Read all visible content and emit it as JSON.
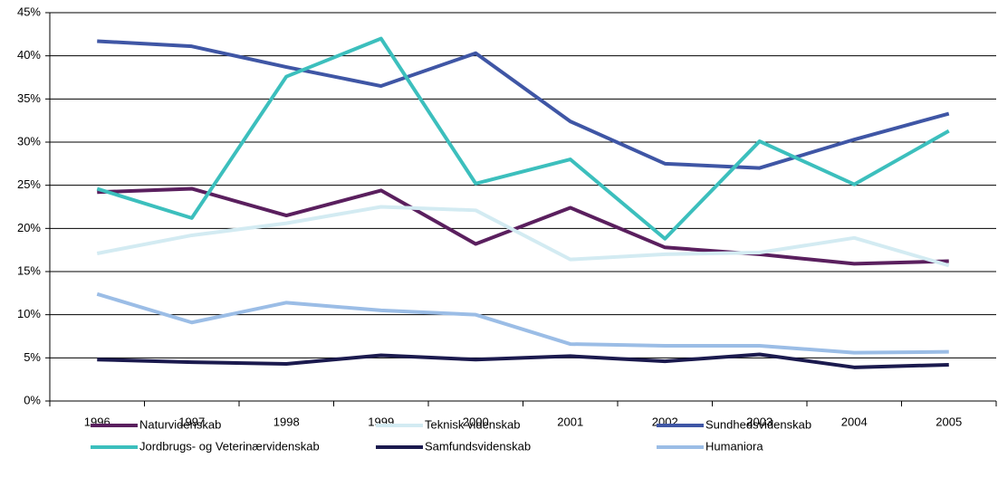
{
  "chart_data": {
    "type": "line",
    "categories": [
      "1996",
      "1997",
      "1998",
      "1999",
      "2000",
      "2001",
      "2002",
      "2003",
      "2004",
      "2005"
    ],
    "series": [
      {
        "name": "Naturvidenskab",
        "color": "#5a1f5e",
        "values": [
          24.2,
          24.6,
          21.5,
          24.4,
          18.2,
          22.4,
          17.8,
          17.0,
          15.9,
          16.2
        ]
      },
      {
        "name": "Teknisk videnskab",
        "color": "#d3ebf2",
        "values": [
          17.1,
          19.2,
          20.6,
          22.5,
          22.1,
          16.4,
          17.0,
          17.2,
          18.9,
          15.7
        ]
      },
      {
        "name": "Sundhedsvidenskab",
        "color": "#3f56a5",
        "values": [
          41.7,
          41.1,
          38.7,
          36.5,
          40.3,
          32.4,
          27.5,
          27.0,
          30.3,
          33.3
        ]
      },
      {
        "name": "Jordbrugs- og Veterinærvidenskab",
        "color": "#3cbfbd",
        "values": [
          24.6,
          21.2,
          37.6,
          42.0,
          25.2,
          28.0,
          18.8,
          30.1,
          25.1,
          31.3
        ]
      },
      {
        "name": "Samfundsvidenskab",
        "color": "#1b1a4e",
        "values": [
          4.8,
          4.5,
          4.3,
          5.3,
          4.8,
          5.2,
          4.6,
          5.4,
          3.9,
          4.2
        ]
      },
      {
        "name": "Humaniora",
        "color": "#9bbde6",
        "values": [
          12.4,
          9.1,
          11.4,
          10.5,
          10.0,
          6.6,
          6.4,
          6.4,
          5.6,
          5.7
        ]
      }
    ],
    "ylim": [
      0,
      45
    ],
    "yticks": [
      {
        "value": 0,
        "label": "0%"
      },
      {
        "value": 5,
        "label": "5%"
      },
      {
        "value": 10,
        "label": "10%"
      },
      {
        "value": 15,
        "label": "15%"
      },
      {
        "value": 20,
        "label": "20%"
      },
      {
        "value": 25,
        "label": "25%"
      },
      {
        "value": 30,
        "label": "30%"
      },
      {
        "value": 35,
        "label": "35%"
      },
      {
        "value": 40,
        "label": "40%"
      },
      {
        "value": 45,
        "label": "45%"
      }
    ],
    "grid": true
  }
}
